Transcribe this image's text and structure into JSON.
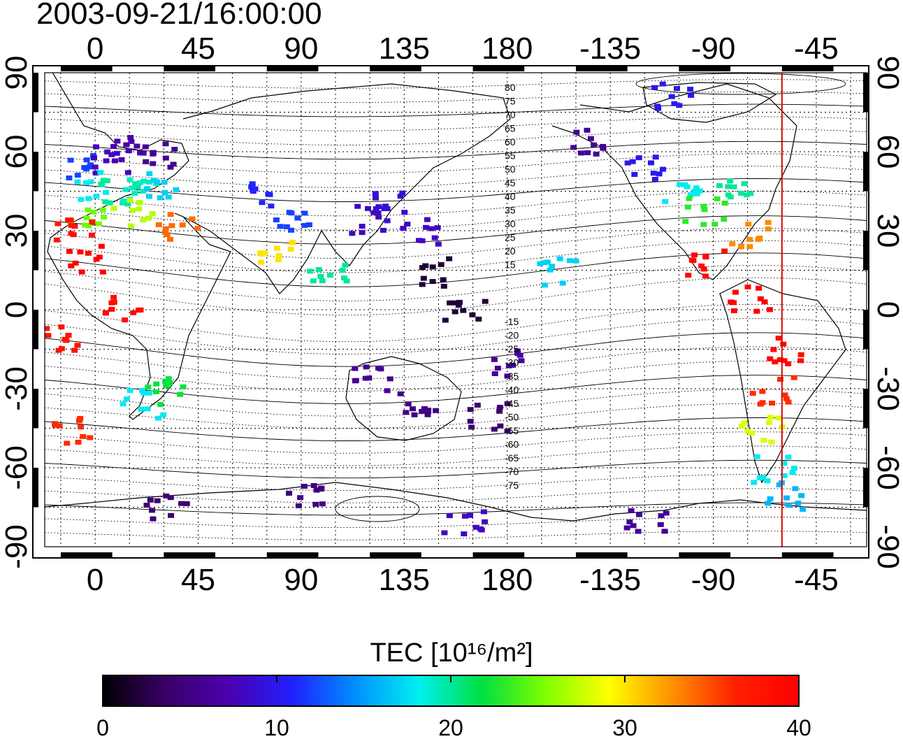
{
  "timestamp": "2003-09-21/16:00:00",
  "map": {
    "top_ticks": [
      "0",
      "45",
      "90",
      "135",
      "180",
      "-135",
      "-90",
      "-45"
    ],
    "bottom_ticks": [
      "0",
      "45",
      "90",
      "135",
      "180",
      "-135",
      "-90",
      "-45"
    ],
    "left_ticks": [
      "90",
      "60",
      "30",
      "0",
      "-30",
      "-60",
      "-90"
    ],
    "right_ticks": [
      "90",
      "60",
      "30",
      "0",
      "-30",
      "-60",
      "-90"
    ],
    "top_tick_lons": [
      0,
      45,
      90,
      135,
      180,
      225,
      270,
      315
    ],
    "lat_ticks": [
      90,
      60,
      30,
      0,
      -30,
      -60,
      -90
    ],
    "lon_range": [
      -22,
      337
    ],
    "lat_range": [
      -90,
      90
    ],
    "grid": "dotted, 15 degree",
    "meridian_marker": {
      "lon": -60,
      "color": "#e00000"
    },
    "contour_labels_north": [
      "80",
      "75",
      "70",
      "65",
      "60",
      "55",
      "50",
      "45",
      "40",
      "35",
      "30",
      "25",
      "20",
      "15"
    ],
    "contour_labels_south": [
      "-15",
      "-20",
      "-25",
      "-30",
      "-35",
      "-40",
      "-45",
      "-50",
      "-55",
      "-60",
      "-65",
      "-70",
      "-75"
    ]
  },
  "colorbar": {
    "title": "TEC  [10¹⁶/m²]",
    "ticks": [
      "0",
      "10",
      "20",
      "30",
      "40"
    ],
    "min": 0,
    "max": 40,
    "colors": [
      "#000000",
      "#3a0068",
      "#4b00b0",
      "#2020ff",
      "#0090ff",
      "#00f0f0",
      "#00e040",
      "#80ff00",
      "#ffff00",
      "#ff9000",
      "#ff2000",
      "#ff0000"
    ]
  },
  "chart_data": {
    "type": "heatmap",
    "title": "2003-09-21/16:00:00",
    "xlabel": "",
    "ylabel": "",
    "value_label": "TEC  [10¹⁶/m²]",
    "value_range": [
      0,
      40
    ],
    "cells": [
      {
        "lon": -5,
        "lat": 55,
        "tec": 12
      },
      {
        "lon": 5,
        "lat": 58,
        "tec": 8
      },
      {
        "lon": 15,
        "lat": 62,
        "tec": 7
      },
      {
        "lon": 25,
        "lat": 60,
        "tec": 6
      },
      {
        "lon": 0,
        "lat": 48,
        "tec": 18
      },
      {
        "lon": 10,
        "lat": 45,
        "tec": 20
      },
      {
        "lon": 20,
        "lat": 45,
        "tec": 19
      },
      {
        "lon": 30,
        "lat": 48,
        "tec": 17
      },
      {
        "lon": -5,
        "lat": 38,
        "tec": 25
      },
      {
        "lon": 15,
        "lat": 38,
        "tec": 27
      },
      {
        "lon": 35,
        "lat": 32,
        "tec": 34
      },
      {
        "lon": -10,
        "lat": 30,
        "tec": 38
      },
      {
        "lon": -5,
        "lat": 20,
        "tec": 40
      },
      {
        "lon": 10,
        "lat": 2,
        "tec": 39
      },
      {
        "lon": -15,
        "lat": -10,
        "tec": 38
      },
      {
        "lon": 30,
        "lat": -30,
        "tec": 22
      },
      {
        "lon": 20,
        "lat": -35,
        "tec": 18
      },
      {
        "lon": -10,
        "lat": -45,
        "tec": 36
      },
      {
        "lon": 75,
        "lat": 45,
        "tec": 11
      },
      {
        "lon": 85,
        "lat": 35,
        "tec": 12
      },
      {
        "lon": 80,
        "lat": 22,
        "tec": 30
      },
      {
        "lon": 100,
        "lat": 15,
        "tec": 20
      },
      {
        "lon": 120,
        "lat": 35,
        "tec": 8
      },
      {
        "lon": 130,
        "lat": 40,
        "tec": 9
      },
      {
        "lon": 140,
        "lat": 30,
        "tec": 8
      },
      {
        "lon": 145,
        "lat": 15,
        "tec": 2
      },
      {
        "lon": 160,
        "lat": 0,
        "tec": 2
      },
      {
        "lon": 120,
        "lat": -25,
        "tec": 6
      },
      {
        "lon": 140,
        "lat": -35,
        "tec": 5
      },
      {
        "lon": 170,
        "lat": -40,
        "tec": 4
      },
      {
        "lon": 180,
        "lat": -20,
        "tec": 6
      },
      {
        "lon": 200,
        "lat": 15,
        "tec": 17
      },
      {
        "lon": 215,
        "lat": 65,
        "tec": 6
      },
      {
        "lon": 240,
        "lat": 55,
        "tec": 10
      },
      {
        "lon": 255,
        "lat": 45,
        "tec": 18
      },
      {
        "lon": 265,
        "lat": 38,
        "tec": 23
      },
      {
        "lon": 280,
        "lat": 45,
        "tec": 20
      },
      {
        "lon": 285,
        "lat": 30,
        "tec": 33
      },
      {
        "lon": 265,
        "lat": 18,
        "tec": 39
      },
      {
        "lon": 285,
        "lat": 5,
        "tec": 40
      },
      {
        "lon": 300,
        "lat": -15,
        "tec": 39
      },
      {
        "lon": 295,
        "lat": -30,
        "tec": 36
      },
      {
        "lon": 290,
        "lat": -45,
        "tec": 28
      },
      {
        "lon": 295,
        "lat": -60,
        "tec": 18
      },
      {
        "lon": 300,
        "lat": -70,
        "tec": 16
      },
      {
        "lon": 240,
        "lat": -80,
        "tec": 6
      },
      {
        "lon": 160,
        "lat": -80,
        "tec": 8
      },
      {
        "lon": 90,
        "lat": -70,
        "tec": 5
      },
      {
        "lon": 30,
        "lat": -75,
        "tec": 4
      },
      {
        "lon": 250,
        "lat": 82,
        "tec": 10
      }
    ]
  }
}
